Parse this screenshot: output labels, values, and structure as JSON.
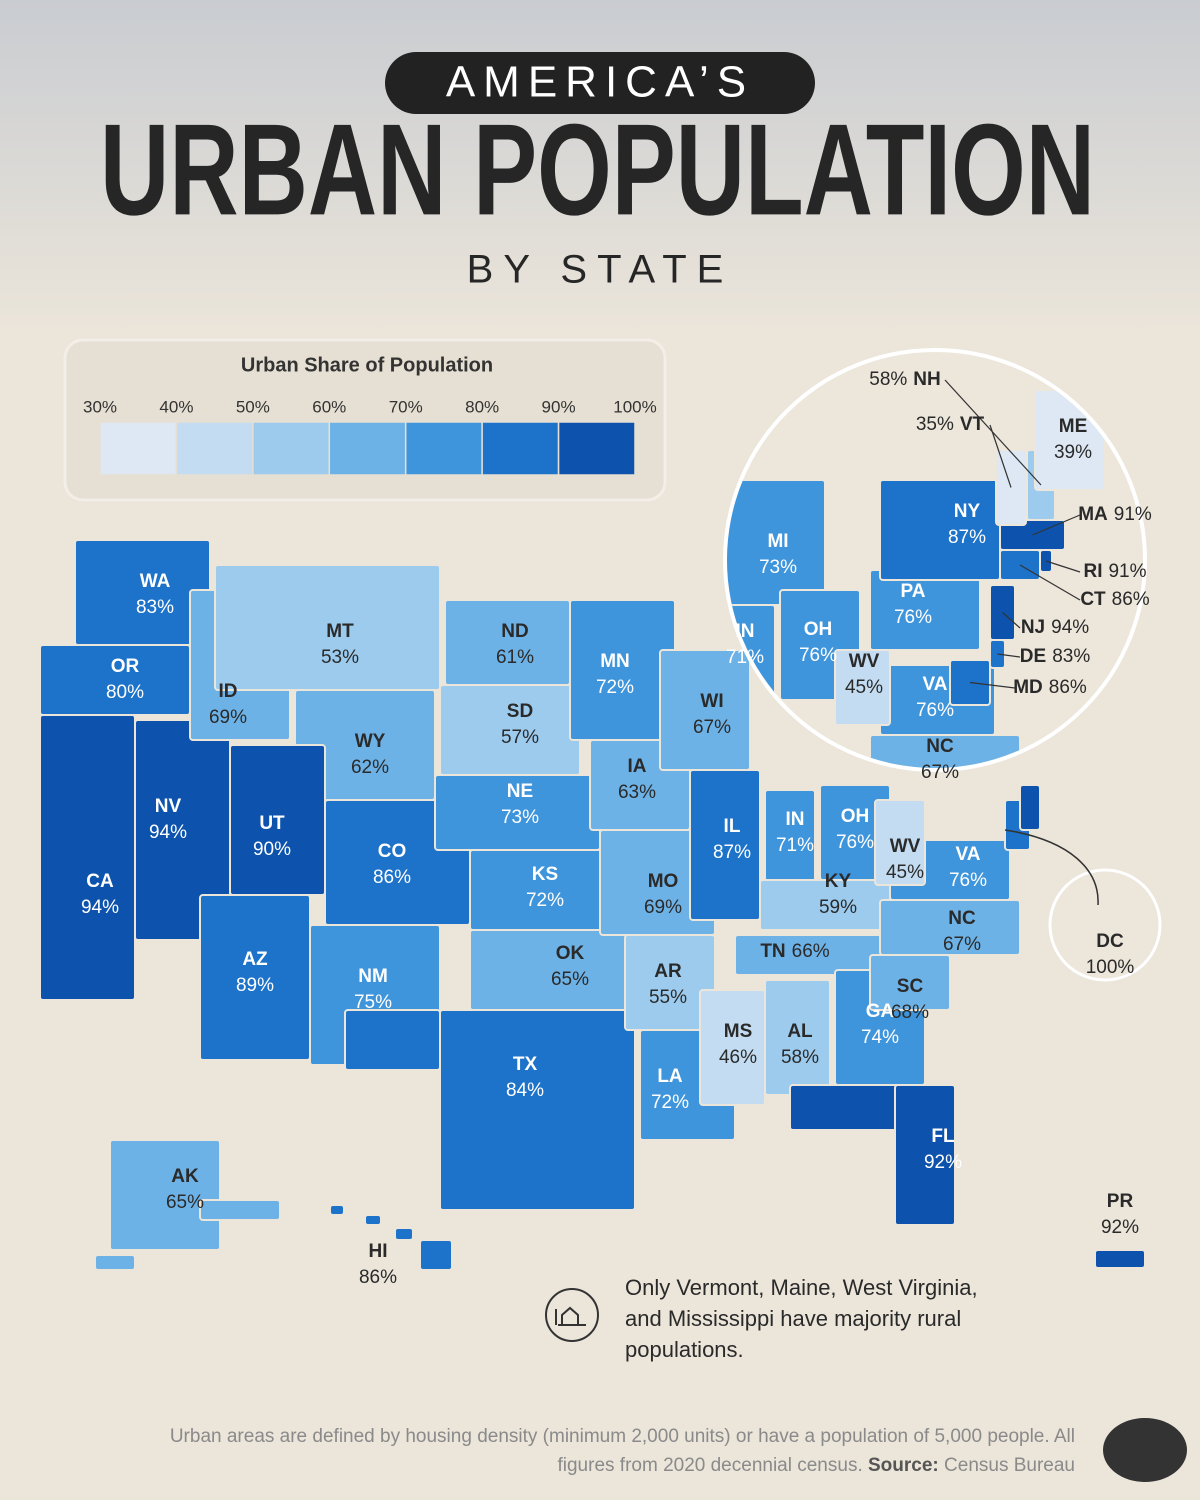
{
  "header": {
    "kicker": "AMERICA’S",
    "title": "URBAN POPULATION",
    "subtitle": "BY STATE"
  },
  "legend": {
    "title": "Urban Share of Population",
    "ticks": [
      {
        "value": 30,
        "label": "30%"
      },
      {
        "value": 40,
        "label": "40%"
      },
      {
        "value": 50,
        "label": "50%"
      },
      {
        "value": 60,
        "label": "60%"
      },
      {
        "value": 70,
        "label": "70%"
      },
      {
        "value": 80,
        "label": "80%"
      },
      {
        "value": 90,
        "label": "90%"
      },
      {
        "value": 100,
        "label": "100%"
      }
    ]
  },
  "states": [
    {
      "abbr": "WA",
      "value": 83,
      "label": "83%"
    },
    {
      "abbr": "OR",
      "value": 80,
      "label": "80%"
    },
    {
      "abbr": "CA",
      "value": 94,
      "label": "94%"
    },
    {
      "abbr": "NV",
      "value": 94,
      "label": "94%"
    },
    {
      "abbr": "ID",
      "value": 69,
      "label": "69%"
    },
    {
      "abbr": "MT",
      "value": 53,
      "label": "53%"
    },
    {
      "abbr": "WY",
      "value": 62,
      "label": "62%"
    },
    {
      "abbr": "UT",
      "value": 90,
      "label": "90%"
    },
    {
      "abbr": "CO",
      "value": 86,
      "label": "86%"
    },
    {
      "abbr": "AZ",
      "value": 89,
      "label": "89%"
    },
    {
      "abbr": "NM",
      "value": 75,
      "label": "75%"
    },
    {
      "abbr": "TX",
      "value": 84,
      "label": "84%"
    },
    {
      "abbr": "ND",
      "value": 61,
      "label": "61%"
    },
    {
      "abbr": "SD",
      "value": 57,
      "label": "57%"
    },
    {
      "abbr": "NE",
      "value": 73,
      "label": "73%"
    },
    {
      "abbr": "KS",
      "value": 72,
      "label": "72%"
    },
    {
      "abbr": "OK",
      "value": 65,
      "label": "65%"
    },
    {
      "abbr": "MN",
      "value": 72,
      "label": "72%"
    },
    {
      "abbr": "IA",
      "value": 63,
      "label": "63%"
    },
    {
      "abbr": "MO",
      "value": 69,
      "label": "69%"
    },
    {
      "abbr": "AR",
      "value": 55,
      "label": "55%"
    },
    {
      "abbr": "LA",
      "value": 72,
      "label": "72%"
    },
    {
      "abbr": "WI",
      "value": 67,
      "label": "67%"
    },
    {
      "abbr": "IL",
      "value": 87,
      "label": "87%"
    },
    {
      "abbr": "MI",
      "value": 73,
      "label": "73%"
    },
    {
      "abbr": "IN",
      "value": 71,
      "label": "71%"
    },
    {
      "abbr": "OH",
      "value": 76,
      "label": "76%"
    },
    {
      "abbr": "KY",
      "value": 59,
      "label": "59%"
    },
    {
      "abbr": "TN",
      "value": 66,
      "label": "66%"
    },
    {
      "abbr": "MS",
      "value": 46,
      "label": "46%"
    },
    {
      "abbr": "AL",
      "value": 58,
      "label": "58%"
    },
    {
      "abbr": "GA",
      "value": 74,
      "label": "74%"
    },
    {
      "abbr": "FL",
      "value": 92,
      "label": "92%"
    },
    {
      "abbr": "SC",
      "value": 68,
      "label": "68%"
    },
    {
      "abbr": "NC",
      "value": 67,
      "label": "67%"
    },
    {
      "abbr": "VA",
      "value": 76,
      "label": "76%"
    },
    {
      "abbr": "WV",
      "value": 45,
      "label": "45%"
    },
    {
      "abbr": "MD",
      "value": 86,
      "label": "86%"
    },
    {
      "abbr": "DE",
      "value": 83,
      "label": "83%"
    },
    {
      "abbr": "PA",
      "value": 76,
      "label": "76%"
    },
    {
      "abbr": "NJ",
      "value": 94,
      "label": "94%"
    },
    {
      "abbr": "NY",
      "value": 87,
      "label": "87%"
    },
    {
      "abbr": "CT",
      "value": 86,
      "label": "86%"
    },
    {
      "abbr": "RI",
      "value": 91,
      "label": "91%"
    },
    {
      "abbr": "MA",
      "value": 91,
      "label": "91%"
    },
    {
      "abbr": "NH",
      "value": 58,
      "label": "58%"
    },
    {
      "abbr": "VT",
      "value": 35,
      "label": "35%"
    },
    {
      "abbr": "ME",
      "value": 39,
      "label": "39%"
    },
    {
      "abbr": "DC",
      "value": 100,
      "label": "100%"
    },
    {
      "abbr": "AK",
      "value": 65,
      "label": "65%"
    },
    {
      "abbr": "HI",
      "value": 86,
      "label": "86%"
    },
    {
      "abbr": "PR",
      "value": 92,
      "label": "92%"
    }
  ],
  "note": "Only Vermont, Maine, West Virginia, and Mississippi have majority rural populations.",
  "footer": {
    "text": "Urban areas are defined by housing density (minimum 2,000 units) or have a population of 5,000 people. All figures from 2020 decennial census.",
    "source_label": "Source:",
    "source": "Census Bureau"
  }
}
